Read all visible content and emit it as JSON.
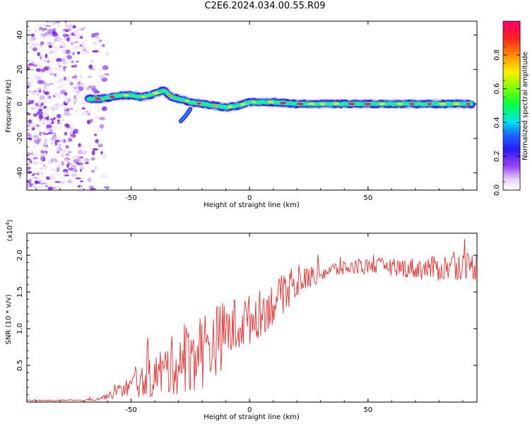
{
  "title": "C2E6.2024.034.00.55.R09",
  "colors": {
    "snr_line": "#e83030",
    "axis": "#000000"
  },
  "chart_data": [
    {
      "type": "heatmap",
      "title": "",
      "xlabel": "Height of straight line (km)",
      "ylabel": "Frequency (Hz)",
      "xlim": [
        -94,
        96
      ],
      "ylim": [
        -50,
        48
      ],
      "x_ticks": [
        -50,
        0,
        50
      ],
      "y_ticks": [
        -40,
        -20,
        0,
        20,
        40
      ],
      "x_tick_labels": [
        "-50",
        "0",
        "50"
      ],
      "y_tick_labels": [
        "-40",
        "-20",
        "0",
        "20",
        "40"
      ],
      "colorbar": {
        "label": "Normalized spectral amplitude",
        "range": [
          0,
          1
        ],
        "ticks": [
          0,
          0.2,
          0.4,
          0.6,
          0.8
        ],
        "tick_labels": [
          "0.0",
          "0.2",
          "0.4",
          "0.6",
          "0.8"
        ]
      },
      "ridge": {
        "x": [
          -68,
          -62,
          -55,
          -50,
          -45,
          -40,
          -36,
          -33,
          -30,
          -27,
          -25,
          -20,
          -15,
          -10,
          -5,
          0,
          5,
          10,
          20,
          40,
          60,
          80,
          94
        ],
        "y": [
          3,
          3,
          5,
          5,
          4,
          6,
          8,
          4,
          3,
          2,
          1,
          0,
          -1,
          -2,
          -1,
          1,
          1,
          1,
          0,
          0,
          0,
          0,
          0
        ]
      },
      "branch": {
        "x": [
          -25,
          -27,
          -29
        ],
        "y": [
          -3,
          -7,
          -10
        ]
      }
    },
    {
      "type": "line",
      "title": "",
      "xlabel": "Height of straight line (km)",
      "ylabel": "SNR (10 * v/v)",
      "y_multiplier": "(x10^4)",
      "xlim": [
        -94,
        96
      ],
      "ylim": [
        0,
        2.3
      ],
      "x_ticks": [
        -50,
        0,
        50
      ],
      "y_ticks": [
        0.5,
        1.0,
        1.5,
        2.0
      ],
      "x_tick_labels": [
        "-50",
        "0",
        "50"
      ],
      "y_tick_labels": [
        "0.5",
        "1.0",
        "1.5",
        "2.0"
      ],
      "trend": {
        "x": [
          -94,
          -70,
          -65,
          -60,
          -55,
          -50,
          -45,
          -40,
          -35,
          -30,
          -25,
          -20,
          -15,
          -10,
          -5,
          0,
          5,
          10,
          15,
          20,
          25,
          30,
          35,
          40,
          45,
          50,
          55,
          60,
          65,
          70,
          75,
          80,
          85,
          90,
          96
        ],
        "y": [
          0.02,
          0.02,
          0.04,
          0.08,
          0.15,
          0.22,
          0.28,
          0.36,
          0.45,
          0.55,
          0.62,
          0.72,
          0.82,
          0.95,
          1.05,
          1.12,
          1.22,
          1.35,
          1.48,
          1.6,
          1.7,
          1.76,
          1.8,
          1.82,
          1.84,
          1.85,
          1.85,
          1.84,
          1.83,
          1.82,
          1.82,
          1.82,
          1.84,
          1.86,
          1.85
        ]
      },
      "noise_amp": {
        "x": [
          -94,
          -70,
          -60,
          -50,
          -40,
          -30,
          -20,
          -10,
          0,
          10,
          20,
          30,
          40,
          60,
          80,
          96
        ],
        "y": [
          0.01,
          0.01,
          0.04,
          0.15,
          0.3,
          0.45,
          0.55,
          0.45,
          0.35,
          0.3,
          0.2,
          0.12,
          0.1,
          0.12,
          0.18,
          0.2
        ]
      }
    }
  ]
}
